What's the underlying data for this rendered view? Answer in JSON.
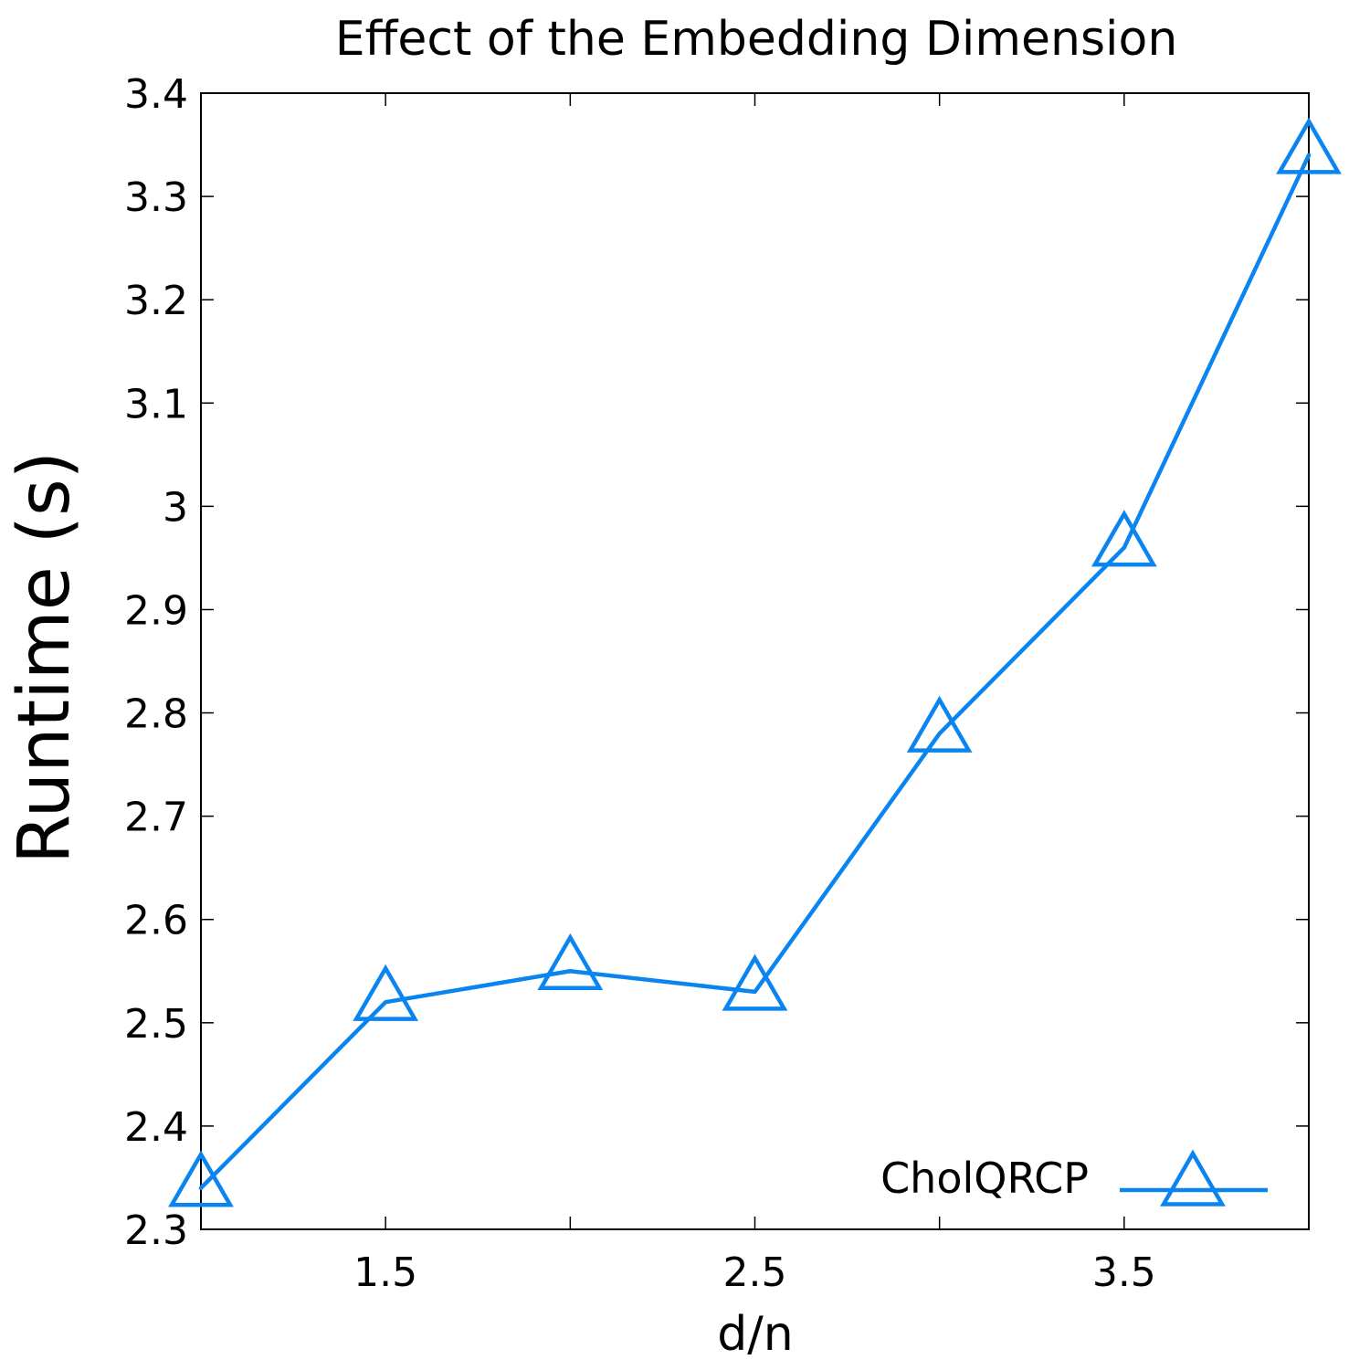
{
  "chart_data": {
    "type": "line",
    "title": "Effect of the Embedding Dimension",
    "xlabel": "d/n",
    "ylabel": "Runtime (s)",
    "xlim": [
      1.0,
      4.0
    ],
    "ylim": [
      2.3,
      3.4
    ],
    "xticks": [
      1.5,
      2.5,
      3.5
    ],
    "xtick_labels": [
      "1.5",
      "2.5",
      "3.5"
    ],
    "xticks_minor": [
      2.0,
      3.0
    ],
    "yticks": [
      2.3,
      2.4,
      2.5,
      2.6,
      2.7,
      2.8,
      2.9,
      3.0,
      3.1,
      3.2,
      3.3,
      3.4
    ],
    "ytick_labels": [
      "2.3",
      "2.4",
      "2.5",
      "2.6",
      "2.7",
      "2.8",
      "2.9",
      "3",
      "3.1",
      "3.2",
      "3.3",
      "3.4"
    ],
    "grid": false,
    "legend_position": "bottom-right",
    "series": [
      {
        "name": "CholQRCP",
        "color": "#0a84f0",
        "marker": "triangle",
        "x": [
          1.0,
          1.5,
          2.0,
          2.5,
          3.0,
          3.5,
          4.0
        ],
        "y": [
          2.34,
          2.52,
          2.55,
          2.53,
          2.78,
          2.96,
          3.34
        ]
      }
    ]
  }
}
